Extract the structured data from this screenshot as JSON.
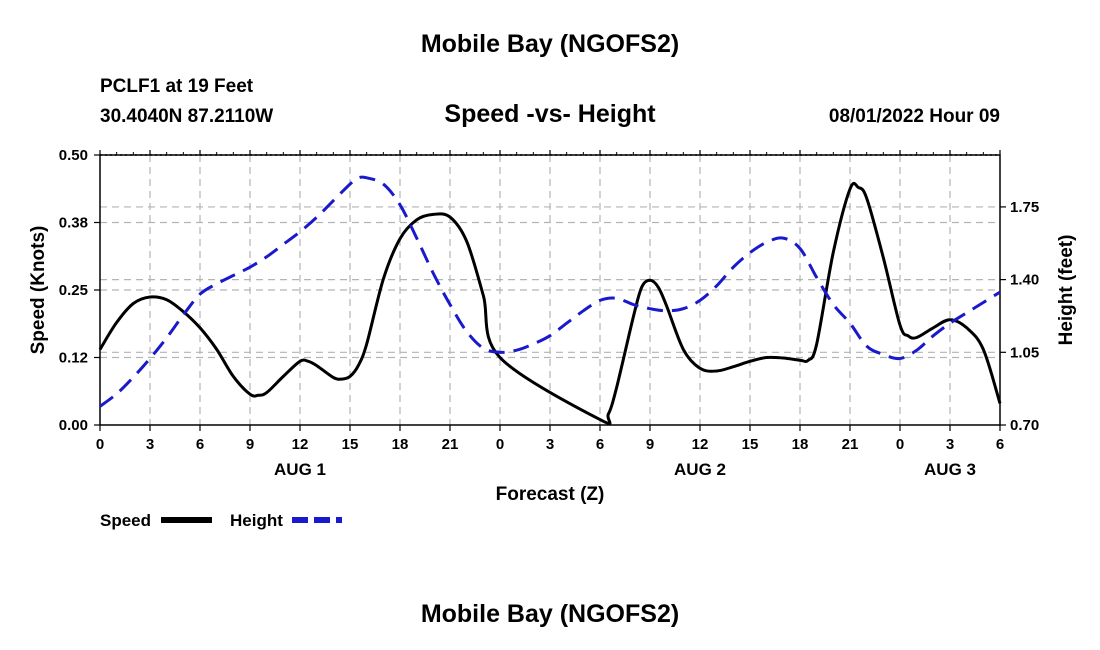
{
  "header": {
    "title": "Mobile Bay (NGOFS2)",
    "station": "PCLF1 at 19 Feet",
    "coords": "30.4040N  87.2110W",
    "subtitle": "Speed -vs- Height",
    "datetime": "08/01/2022 Hour 09"
  },
  "footer": {
    "title": "Mobile Bay (NGOFS2)"
  },
  "colors": {
    "speed": "#000000",
    "height": "#1a1acc",
    "grid": "#b4b4b4"
  },
  "chart_data": {
    "type": "line",
    "xlabel": "Forecast (Z)",
    "ylabel_left": "Speed (Knots)",
    "ylabel_right": "Height (feet)",
    "x_unit": "hours from 2022-08-01 00Z",
    "xlim": [
      0,
      54
    ],
    "ylim_left": [
      0,
      0.5
    ],
    "ylim_right": [
      0.7,
      2.0
    ],
    "yticks_left": [
      {
        "v": 0.0,
        "label": "0.00"
      },
      {
        "v": 0.125,
        "label": "0.12"
      },
      {
        "v": 0.25,
        "label": "0.25"
      },
      {
        "v": 0.375,
        "label": "0.38"
      },
      {
        "v": 0.5,
        "label": "0.50"
      }
    ],
    "yticks_right": [
      {
        "v": 0.7,
        "label": "0.70"
      },
      {
        "v": 1.05,
        "label": "1.05"
      },
      {
        "v": 1.4,
        "label": "1.40"
      },
      {
        "v": 1.75,
        "label": "1.75"
      }
    ],
    "xticks": [
      {
        "v": 0,
        "label": "0"
      },
      {
        "v": 3,
        "label": "3"
      },
      {
        "v": 6,
        "label": "6"
      },
      {
        "v": 9,
        "label": "9"
      },
      {
        "v": 12,
        "label": "12"
      },
      {
        "v": 15,
        "label": "15"
      },
      {
        "v": 18,
        "label": "18"
      },
      {
        "v": 21,
        "label": "21"
      },
      {
        "v": 24,
        "label": "0"
      },
      {
        "v": 27,
        "label": "3"
      },
      {
        "v": 30,
        "label": "6"
      },
      {
        "v": 33,
        "label": "9"
      },
      {
        "v": 36,
        "label": "12"
      },
      {
        "v": 39,
        "label": "15"
      },
      {
        "v": 42,
        "label": "18"
      },
      {
        "v": 45,
        "label": "21"
      },
      {
        "v": 48,
        "label": "0"
      },
      {
        "v": 51,
        "label": "3"
      },
      {
        "v": 54,
        "label": "6"
      }
    ],
    "day_labels": [
      {
        "v": 12,
        "label": "AUG 1"
      },
      {
        "v": 36,
        "label": "AUG 2"
      },
      {
        "v": 51,
        "label": "AUG 3"
      }
    ],
    "grid": true,
    "legend": "bottom-left",
    "series": [
      {
        "name": "Speed",
        "axis": "left",
        "style": "solid",
        "x": [
          0,
          1,
          2,
          3,
          4,
          5,
          6,
          7,
          8,
          9,
          9.5,
          10,
          11,
          12,
          12.5,
          13,
          14,
          14.5,
          15,
          15.5,
          16,
          17,
          18,
          19,
          20,
          21,
          22,
          23,
          24,
          30,
          30.5,
          31,
          32,
          32.5,
          33,
          33.5,
          34,
          35,
          36,
          37,
          38,
          39,
          40,
          41,
          42,
          42.5,
          43,
          44,
          45,
          45.5,
          46,
          47,
          48,
          48.5,
          49,
          50,
          51,
          52,
          53,
          54
        ],
        "y": [
          0.14,
          0.19,
          0.225,
          0.237,
          0.232,
          0.21,
          0.18,
          0.14,
          0.09,
          0.057,
          0.055,
          0.06,
          0.09,
          0.118,
          0.118,
          0.11,
          0.088,
          0.085,
          0.09,
          0.11,
          0.15,
          0.27,
          0.345,
          0.38,
          0.39,
          0.385,
          0.34,
          0.24,
          0.125,
          0.01,
          0.02,
          0.07,
          0.2,
          0.255,
          0.268,
          0.255,
          0.22,
          0.14,
          0.105,
          0.1,
          0.108,
          0.118,
          0.125,
          0.124,
          0.12,
          0.12,
          0.15,
          0.32,
          0.437,
          0.44,
          0.42,
          0.31,
          0.185,
          0.165,
          0.162,
          0.18,
          0.195,
          0.18,
          0.14,
          0.04
        ]
      },
      {
        "name": "Height",
        "axis": "right",
        "style": "dashed",
        "x": [
          0,
          1,
          2,
          3,
          4,
          5,
          6,
          7,
          8,
          9,
          10,
          11,
          12,
          13,
          14,
          15,
          15.5,
          16,
          17,
          18,
          19,
          20,
          21,
          22,
          23,
          24,
          25,
          26,
          27,
          28,
          29,
          30,
          31,
          32,
          33,
          34,
          35,
          36,
          37,
          38,
          39,
          40,
          41,
          42,
          43,
          44,
          45,
          46,
          47,
          48,
          49,
          50,
          51,
          52,
          53,
          54
        ],
        "y": [
          0.79,
          0.85,
          0.93,
          1.02,
          1.12,
          1.23,
          1.33,
          1.38,
          1.42,
          1.46,
          1.51,
          1.57,
          1.63,
          1.7,
          1.78,
          1.86,
          1.89,
          1.89,
          1.86,
          1.76,
          1.6,
          1.43,
          1.28,
          1.15,
          1.07,
          1.05,
          1.06,
          1.09,
          1.13,
          1.19,
          1.25,
          1.3,
          1.31,
          1.28,
          1.26,
          1.25,
          1.26,
          1.3,
          1.37,
          1.46,
          1.53,
          1.58,
          1.6,
          1.55,
          1.41,
          1.28,
          1.19,
          1.08,
          1.04,
          1.02,
          1.06,
          1.13,
          1.19,
          1.24,
          1.29,
          1.34
        ]
      }
    ]
  }
}
